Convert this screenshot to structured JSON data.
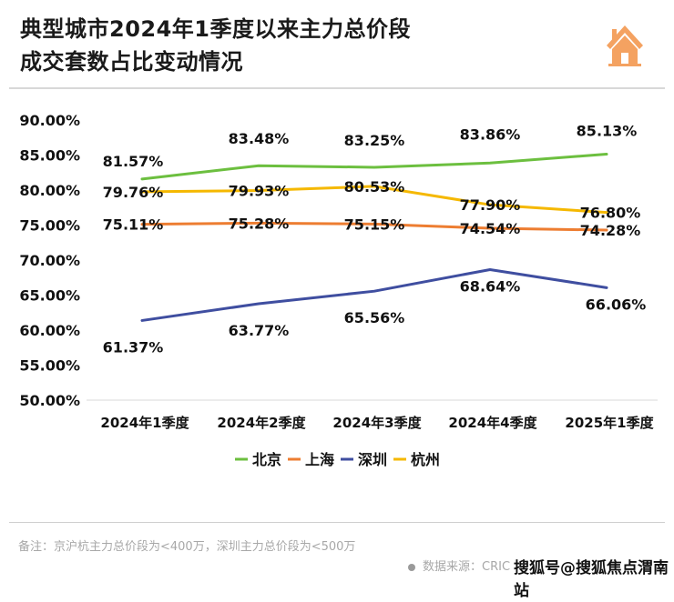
{
  "header": {
    "title_line1": "典型城市2024年1季度以来主力总价段",
    "title_line2": "成交套数占比变动情况",
    "icon": "house-icon",
    "icon_color": "#f4a261"
  },
  "chart_data": {
    "type": "line",
    "title": "典型城市2024年1季度以来主力总价段成交套数占比变动情况",
    "categories": [
      "2024年1季度",
      "2024年2季度",
      "2024年3季度",
      "2024年4季度",
      "2025年1季度"
    ],
    "ylim": [
      50,
      90
    ],
    "yticks": [
      "50.00%",
      "55.00%",
      "60.00%",
      "65.00%",
      "70.00%",
      "75.00%",
      "80.00%",
      "85.00%",
      "90.00%"
    ],
    "ytick_values": [
      50,
      55,
      60,
      65,
      70,
      75,
      80,
      85,
      90
    ],
    "grid": false,
    "legend_position": "bottom",
    "series": [
      {
        "name": "北京",
        "color": "#6cbf3f",
        "values": [
          81.57,
          83.48,
          83.25,
          83.86,
          85.13
        ],
        "labels": [
          "81.57%",
          "83.48%",
          "83.25%",
          "83.86%",
          "85.13%"
        ]
      },
      {
        "name": "上海",
        "color": "#ed7d31",
        "values": [
          75.11,
          75.28,
          75.15,
          74.54,
          74.28
        ],
        "labels": [
          "75.11%",
          "75.28%",
          "75.15%",
          "74.54%",
          "74.28%"
        ]
      },
      {
        "name": "深圳",
        "color": "#3f4ea0",
        "values": [
          61.37,
          63.77,
          65.56,
          68.64,
          66.06
        ],
        "labels": [
          "61.37%",
          "63.77%",
          "65.56%",
          "68.64%",
          "66.06%"
        ]
      },
      {
        "name": "杭州",
        "color": "#f5b800",
        "values": [
          79.76,
          79.93,
          80.53,
          77.9,
          76.8
        ],
        "labels": [
          "79.76%",
          "79.93%",
          "80.53%",
          "77.90%",
          "76.80%"
        ]
      }
    ]
  },
  "footer": {
    "note": "备注：京沪杭主力总价段为<400万，深圳主力总价段为<500万",
    "source": "数据来源：CRIC",
    "watermark": "搜狐号@搜狐焦点渭南站"
  }
}
